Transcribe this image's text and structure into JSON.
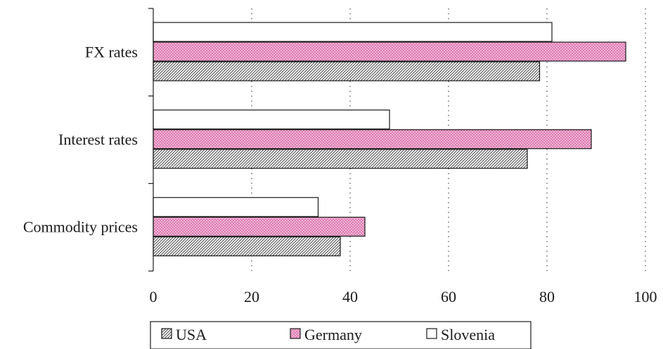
{
  "chart_data": {
    "type": "bar",
    "orientation": "horizontal",
    "categories": [
      "FX rates",
      "Interest rates",
      "Commodity prices"
    ],
    "series": [
      {
        "name": "Slovenia",
        "values": [
          81,
          48,
          33.5
        ],
        "pattern": "none",
        "color": "#ffffff"
      },
      {
        "name": "Germany",
        "values": [
          96,
          89,
          43
        ],
        "pattern": "crosshatch",
        "color": "#d96aa8"
      },
      {
        "name": "USA",
        "values": [
          78.5,
          76,
          38
        ],
        "pattern": "diagonal",
        "color": "#6e6e6e"
      }
    ],
    "legend_order": [
      "USA",
      "Germany",
      "Slovenia"
    ],
    "xlim": [
      0,
      100
    ],
    "x_ticks": [
      0,
      20,
      40,
      60,
      80,
      100
    ],
    "grid": "vertical-dotted",
    "legend_position": "bottom"
  }
}
